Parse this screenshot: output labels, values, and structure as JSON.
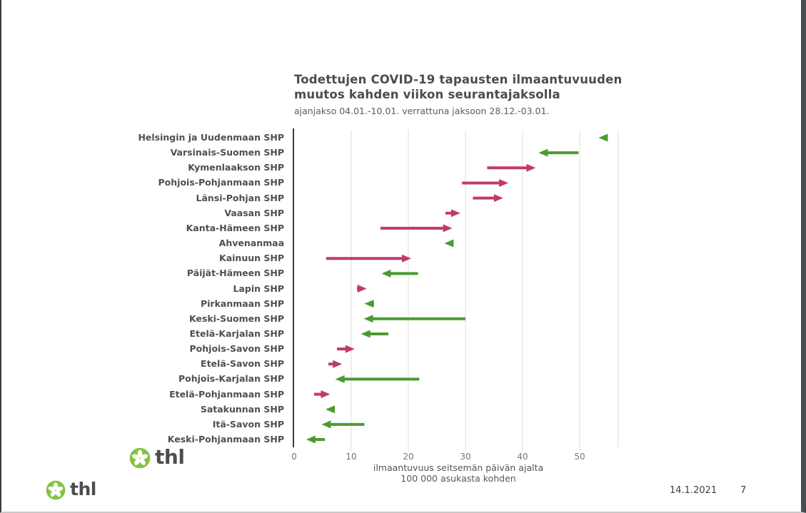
{
  "chart_data": {
    "type": "arrow",
    "title_line1": "Todettujen COVID-19 tapausten ilmaantuvuuden",
    "title_line2": "muutos kahden viikon seurantajaksolla",
    "subtitle": "ajanjakso 04.01.-10.01. verrattuna jaksoon 28.12.-03.01.",
    "xlabel_line1": "ilmaantuvuus seitsemän päivän ajalta",
    "xlabel_line2": "100 000 asukasta kohden",
    "categories": [
      "Helsingin ja Uudenmaan SHP",
      "Varsinais-Suomen SHP",
      "Kymenlaakson SHP",
      "Pohjois-Pohjanmaan SHP",
      "Länsi-Pohjan SHP",
      "Vaasan SHP",
      "Kanta-Hämeen SHP",
      "Ahvenanmaa",
      "Kainuun SHP",
      "Päijät-Hämeen SHP",
      "Lapin SHP",
      "Pirkanmaan SHP",
      "Keski-Suomen SHP",
      "Etelä-Karjalan SHP",
      "Pohjois-Savon SHP",
      "Etelä-Savon SHP",
      "Pohjois-Karjalan SHP",
      "Etelä-Pohjanmaan SHP",
      "Satakunnan SHP",
      "Itä-Savon SHP",
      "Keski-Pohjanmaan SHP"
    ],
    "series": [
      {
        "name": "jakso 28.12.-03.01.",
        "values": [
          54.9,
          49.8,
          33.8,
          29.4,
          31.3,
          26.5,
          15.1,
          27.8,
          5.6,
          21.7,
          11.0,
          14.0,
          30.0,
          16.5,
          7.5,
          6.0,
          21.9,
          3.5,
          7.1,
          12.3,
          5.4
        ]
      },
      {
        "name": "jakso 04.01.-10.01.",
        "values": [
          53.3,
          42.8,
          42.3,
          37.5,
          36.6,
          29.1,
          27.7,
          26.3,
          20.5,
          15.3,
          12.7,
          12.3,
          12.2,
          11.7,
          10.6,
          8.4,
          7.2,
          6.3,
          5.5,
          4.8,
          2.1
        ]
      }
    ],
    "xticks": [
      0,
      10,
      20,
      30,
      40,
      50
    ],
    "xlim": [
      0,
      56.8
    ],
    "grid": true,
    "legend": false,
    "colors": {
      "increase": "#c13a6d",
      "decrease": "#4a9b30",
      "gridline": "#dcdcdc",
      "axis_spine": "#3c3c3c"
    }
  },
  "footer": {
    "date": "14.1.2021",
    "page_number": "7",
    "brand": "thl"
  },
  "logo": {
    "brand": "thl",
    "green": "#82c341"
  }
}
